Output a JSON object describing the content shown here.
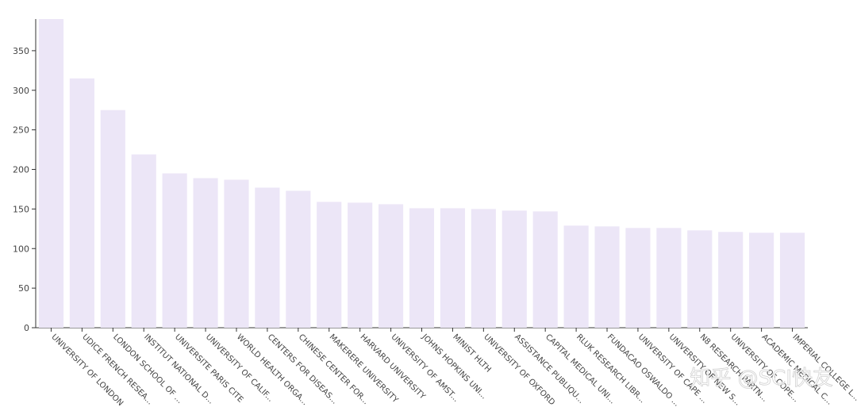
{
  "chart_data": {
    "type": "bar",
    "categories": [
      "UNIVERSITY OF LONDON",
      "UDICE FRENCH RESEA...",
      "LONDON SCHOOL OF ...",
      "INSTITUT NATIONAL D...",
      "UNIVERSITE PARIS CITE",
      "UNIVERSITY OF CALIF...",
      "WORLD HEALTH ORGA...",
      "CENTERS FOR DISEAS...",
      "CHINESE CENTER FOR...",
      "MAKERERE UNIVERSITY",
      "HARVARD UNIVERSITY",
      "UNIVERSITY OF AMST...",
      "JOHNS HOPKINS UNI...",
      "MINIST HLTH",
      "UNIVERSITY OF OXFORD",
      "ASSISTANCE PUBLIQU...",
      "CAPITAL MEDICAL UNI...",
      "RLUK RESEARCH LIBR...",
      "FUNDACAO OSWALDO ...",
      "UNIVERSITY OF CAPE ...",
      "UNIVERSITY OF NEW S...",
      "N8 RESEARCH PARTN...",
      "UNIVERSITY OF COPE...",
      "ACADEMIC MEDICAL C...",
      "IMPERIAL COLLEGE L..."
    ],
    "values": [
      390,
      315,
      275,
      219,
      195,
      189,
      187,
      177,
      173,
      159,
      158,
      156,
      151,
      151,
      150,
      148,
      147,
      129,
      128,
      126,
      126,
      123,
      121,
      120,
      120
    ],
    "color": "#ece6f7",
    "ylim": [
      0,
      390
    ],
    "yticks": [
      0,
      50,
      100,
      150,
      200,
      250,
      300,
      350
    ],
    "grid": false,
    "watermark": "知乎 @SCI快友"
  }
}
